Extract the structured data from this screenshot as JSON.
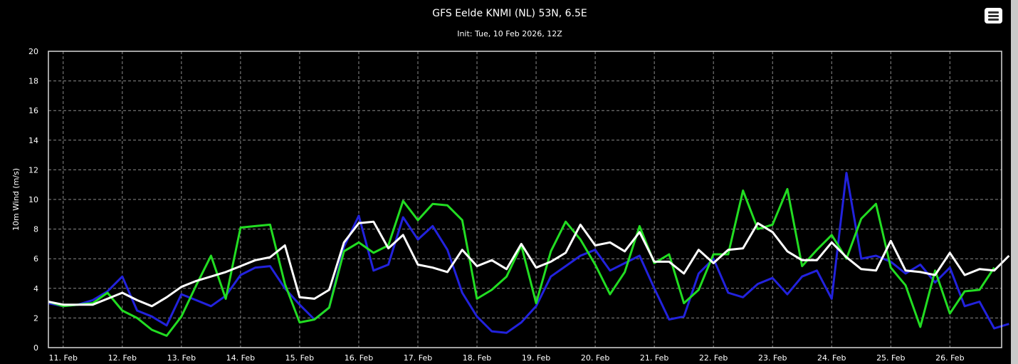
{
  "chart_data": {
    "type": "line",
    "title": "GFS Eelde KNMI (NL) 53N, 6.5E",
    "subtitle": "Init: Tue, 10 Feb 2026, 12Z",
    "xlabel": "",
    "ylabel": "10m Wind (m/s)",
    "ylim": [
      0,
      20
    ],
    "yticks": [
      0,
      2,
      4,
      6,
      8,
      10,
      12,
      14,
      16,
      18,
      20
    ],
    "xlim": [
      "2026-02-10T18:00Z",
      "2026-02-26T21:00Z"
    ],
    "x_ticks": [
      "11. Feb",
      "12. Feb",
      "13. Feb",
      "14. Feb",
      "15. Feb",
      "16. Feb",
      "17. Feb",
      "18. Feb",
      "19. Feb",
      "20. Feb",
      "21. Feb",
      "22. Feb",
      "23. Feb",
      "24. Feb",
      "25. Feb",
      "26. Feb"
    ],
    "x_tick_dates": [
      "2026-02-11",
      "2026-02-12",
      "2026-02-13",
      "2026-02-14",
      "2026-02-15",
      "2026-02-16",
      "2026-02-17",
      "2026-02-18",
      "2026-02-19",
      "2026-02-20",
      "2026-02-21",
      "2026-02-22",
      "2026-02-23",
      "2026-02-24",
      "2026-02-25",
      "2026-02-26"
    ],
    "grid": true,
    "legend": "none",
    "time_step_hours": 6,
    "series": [
      {
        "color": "#ffffff",
        "bold": true,
        "values": [
          3.1,
          2.9,
          2.9,
          2.9,
          3.3,
          3.7,
          3.2,
          2.8,
          3.4,
          4.1,
          4.5,
          4.8,
          5.1,
          5.5,
          5.9,
          6.1,
          6.9,
          3.4,
          3.3,
          3.9,
          7.1,
          8.4,
          8.5,
          6.7,
          7.6,
          5.6,
          5.4,
          5.1,
          6.6,
          5.5,
          5.9,
          5.3,
          7.0,
          5.4,
          5.8,
          6.4,
          8.3,
          6.9,
          7.1,
          6.5,
          7.8,
          5.8,
          5.8,
          5.0,
          6.6,
          5.7,
          6.6,
          6.7,
          8.4,
          7.8,
          6.5,
          5.9,
          5.9,
          7.1,
          6.1,
          5.3,
          5.2,
          7.2,
          5.2,
          5.1,
          4.9,
          6.4,
          4.9,
          5.3,
          5.2,
          6.2
        ]
      },
      {
        "color": "#22dd22",
        "bold": true,
        "values": [
          3.1,
          2.8,
          2.9,
          3.0,
          3.7,
          2.5,
          2.0,
          1.2,
          0.8,
          2.1,
          4.2,
          6.2,
          3.3,
          8.1,
          8.2,
          8.3,
          4.3,
          1.7,
          1.9,
          2.7,
          6.5,
          7.1,
          6.4,
          6.9,
          9.9,
          8.6,
          9.7,
          9.6,
          8.6,
          3.3,
          3.9,
          4.8,
          6.9,
          3.0,
          6.5,
          8.5,
          7.3,
          5.6,
          3.6,
          5.1,
          8.2,
          5.7,
          6.3,
          3.0,
          3.9,
          6.3,
          6.3,
          10.6,
          8.0,
          8.3,
          10.7,
          5.5,
          6.6,
          7.6,
          6.0,
          8.7,
          9.7,
          5.4,
          4.2,
          1.4,
          5.2,
          2.3,
          3.8,
          3.9,
          5.4
        ]
      },
      {
        "color": "#2222dd",
        "bold": true,
        "values": [
          3.0,
          2.8,
          2.9,
          3.2,
          3.8,
          4.8,
          2.5,
          2.1,
          1.5,
          3.6,
          3.2,
          2.8,
          3.5,
          4.9,
          5.4,
          5.5,
          4.0,
          2.9,
          1.9,
          2.7,
          6.8,
          8.9,
          5.2,
          5.6,
          8.8,
          7.3,
          8.2,
          6.6,
          3.7,
          2.1,
          1.1,
          1.0,
          1.7,
          2.8,
          4.8,
          5.5,
          6.2,
          6.6,
          5.2,
          5.7,
          6.2,
          4.0,
          1.9,
          2.1,
          5.0,
          6.0,
          3.7,
          3.4,
          4.3,
          4.7,
          3.6,
          4.8,
          5.2,
          3.3,
          11.8,
          6.0,
          6.2,
          5.8,
          5.0,
          5.6,
          4.4,
          5.4,
          2.8,
          3.1,
          1.3,
          1.6
        ]
      }
    ]
  },
  "menu": {
    "icon": "hamburger-icon"
  }
}
